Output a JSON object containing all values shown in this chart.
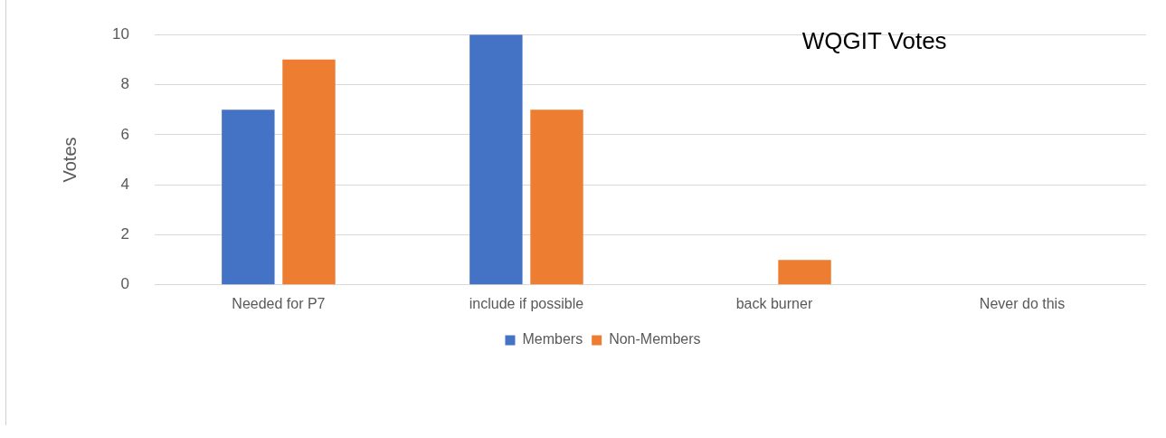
{
  "chart_data": {
    "type": "bar",
    "title": "WQGIT Votes",
    "ylabel": "Votes",
    "categories": [
      "Needed for P7",
      "include if possible",
      "back burner",
      "Never do this"
    ],
    "series": [
      {
        "name": "Members",
        "color": "#4472c4",
        "values": [
          7,
          10,
          0,
          0
        ]
      },
      {
        "name": "Non-Members",
        "color": "#ed7d31",
        "values": [
          9,
          7,
          1,
          0
        ]
      }
    ],
    "ylim": [
      0,
      10
    ],
    "yticks": [
      0,
      2,
      4,
      6,
      8,
      10
    ],
    "grid": "y",
    "legend": "bottom"
  }
}
